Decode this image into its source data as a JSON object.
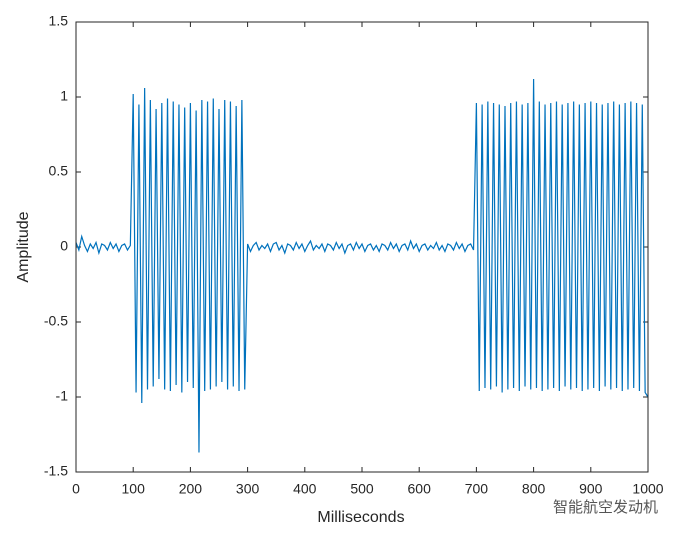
{
  "chart_data": {
    "type": "line",
    "xlabel": "Milliseconds",
    "ylabel": "Amplitude",
    "watermark": "智能航空发动机",
    "color": "#0072bd",
    "xlim": [
      0,
      1000
    ],
    "ylim": [
      -1.5,
      1.5
    ],
    "xticks": [
      0,
      100,
      200,
      300,
      400,
      500,
      600,
      700,
      800,
      900,
      1000
    ],
    "yticks": [
      -1.5,
      -1,
      -0.5,
      0,
      0.5,
      1,
      1.5
    ],
    "x": [
      0,
      5,
      10,
      15,
      20,
      25,
      30,
      35,
      40,
      45,
      50,
      55,
      60,
      65,
      70,
      75,
      80,
      85,
      90,
      95,
      100,
      105,
      110,
      115,
      120,
      125,
      130,
      135,
      140,
      145,
      150,
      155,
      160,
      165,
      170,
      175,
      180,
      185,
      190,
      195,
      200,
      205,
      210,
      215,
      220,
      225,
      230,
      235,
      240,
      245,
      250,
      255,
      260,
      265,
      270,
      275,
      280,
      285,
      290,
      295,
      300,
      305,
      310,
      315,
      320,
      325,
      330,
      335,
      340,
      345,
      350,
      355,
      360,
      365,
      370,
      375,
      380,
      385,
      390,
      395,
      400,
      405,
      410,
      415,
      420,
      425,
      430,
      435,
      440,
      445,
      450,
      455,
      460,
      465,
      470,
      475,
      480,
      485,
      490,
      495,
      500,
      505,
      510,
      515,
      520,
      525,
      530,
      535,
      540,
      545,
      550,
      555,
      560,
      565,
      570,
      575,
      580,
      585,
      590,
      595,
      600,
      605,
      610,
      615,
      620,
      625,
      630,
      635,
      640,
      645,
      650,
      655,
      660,
      665,
      670,
      675,
      680,
      685,
      690,
      695,
      700,
      705,
      710,
      715,
      720,
      725,
      730,
      735,
      740,
      745,
      750,
      755,
      760,
      765,
      770,
      775,
      780,
      785,
      790,
      795,
      800,
      805,
      810,
      815,
      820,
      825,
      830,
      835,
      840,
      845,
      850,
      855,
      860,
      865,
      870,
      875,
      880,
      885,
      890,
      895,
      900,
      905,
      910,
      915,
      920,
      925,
      930,
      935,
      940,
      945,
      950,
      955,
      960,
      965,
      970,
      975,
      980,
      985,
      990,
      995,
      1000
    ],
    "values": [
      0.03,
      -0.02,
      0.07,
      0.01,
      -0.03,
      0.02,
      -0.01,
      0.03,
      -0.04,
      0.02,
      0.01,
      -0.02,
      0.03,
      -0.01,
      0.02,
      -0.03,
      0.01,
      0.02,
      -0.02,
      0.01,
      1.02,
      -0.97,
      0.95,
      -1.04,
      1.06,
      -0.95,
      0.98,
      -0.93,
      0.92,
      -0.88,
      0.96,
      -0.95,
      0.99,
      -0.96,
      0.97,
      -0.92,
      0.95,
      -0.97,
      0.93,
      -0.9,
      0.96,
      -0.94,
      0.91,
      -1.37,
      0.98,
      -0.96,
      0.97,
      -0.95,
      0.99,
      -0.93,
      0.92,
      -0.9,
      0.98,
      -0.95,
      0.97,
      -0.93,
      0.94,
      -0.96,
      0.98,
      -0.95,
      0.02,
      -0.03,
      0.01,
      0.03,
      -0.02,
      0.01,
      -0.01,
      0.02,
      -0.03,
      0.02,
      0.03,
      -0.02,
      0.01,
      -0.04,
      0.02,
      0.01,
      -0.02,
      0.03,
      -0.01,
      0.02,
      -0.03,
      0.01,
      0.04,
      -0.02,
      0.01,
      -0.01,
      0.02,
      -0.03,
      0.02,
      0.01,
      -0.02,
      0.03,
      -0.01,
      0.02,
      -0.04,
      0.01,
      0.02,
      -0.02,
      0.03,
      -0.01,
      0.02,
      -0.03,
      0.01,
      0.02,
      -0.02,
      0.01,
      -0.03,
      0.02,
      0.01,
      -0.02,
      0.03,
      -0.01,
      0.02,
      -0.03,
      0.01,
      0.02,
      -0.02,
      0.04,
      -0.01,
      0.02,
      -0.03,
      0.01,
      0.02,
      -0.02,
      0.01,
      -0.01,
      0.03,
      -0.02,
      0.01,
      -0.03,
      0.02,
      0.01,
      -0.02,
      0.03,
      -0.01,
      0.02,
      -0.03,
      0.01,
      0.02,
      -0.02,
      0.96,
      -0.96,
      0.95,
      -0.94,
      0.97,
      -0.95,
      0.96,
      -0.93,
      0.95,
      -0.97,
      0.94,
      -0.95,
      0.96,
      -0.94,
      0.97,
      -0.96,
      0.95,
      -0.93,
      0.96,
      -0.95,
      1.12,
      -0.94,
      0.97,
      -0.96,
      0.95,
      -0.95,
      0.96,
      -0.94,
      0.97,
      -0.96,
      0.95,
      -0.93,
      0.96,
      -0.95,
      0.97,
      -0.94,
      0.95,
      -0.96,
      0.96,
      -0.95,
      0.97,
      -0.94,
      0.96,
      -0.96,
      0.95,
      -0.93,
      0.96,
      -0.95,
      0.97,
      -0.94,
      0.95,
      -0.96,
      0.96,
      -0.95,
      0.97,
      -0.94,
      0.96,
      -0.96,
      0.95,
      -0.97,
      -1.0
    ]
  }
}
